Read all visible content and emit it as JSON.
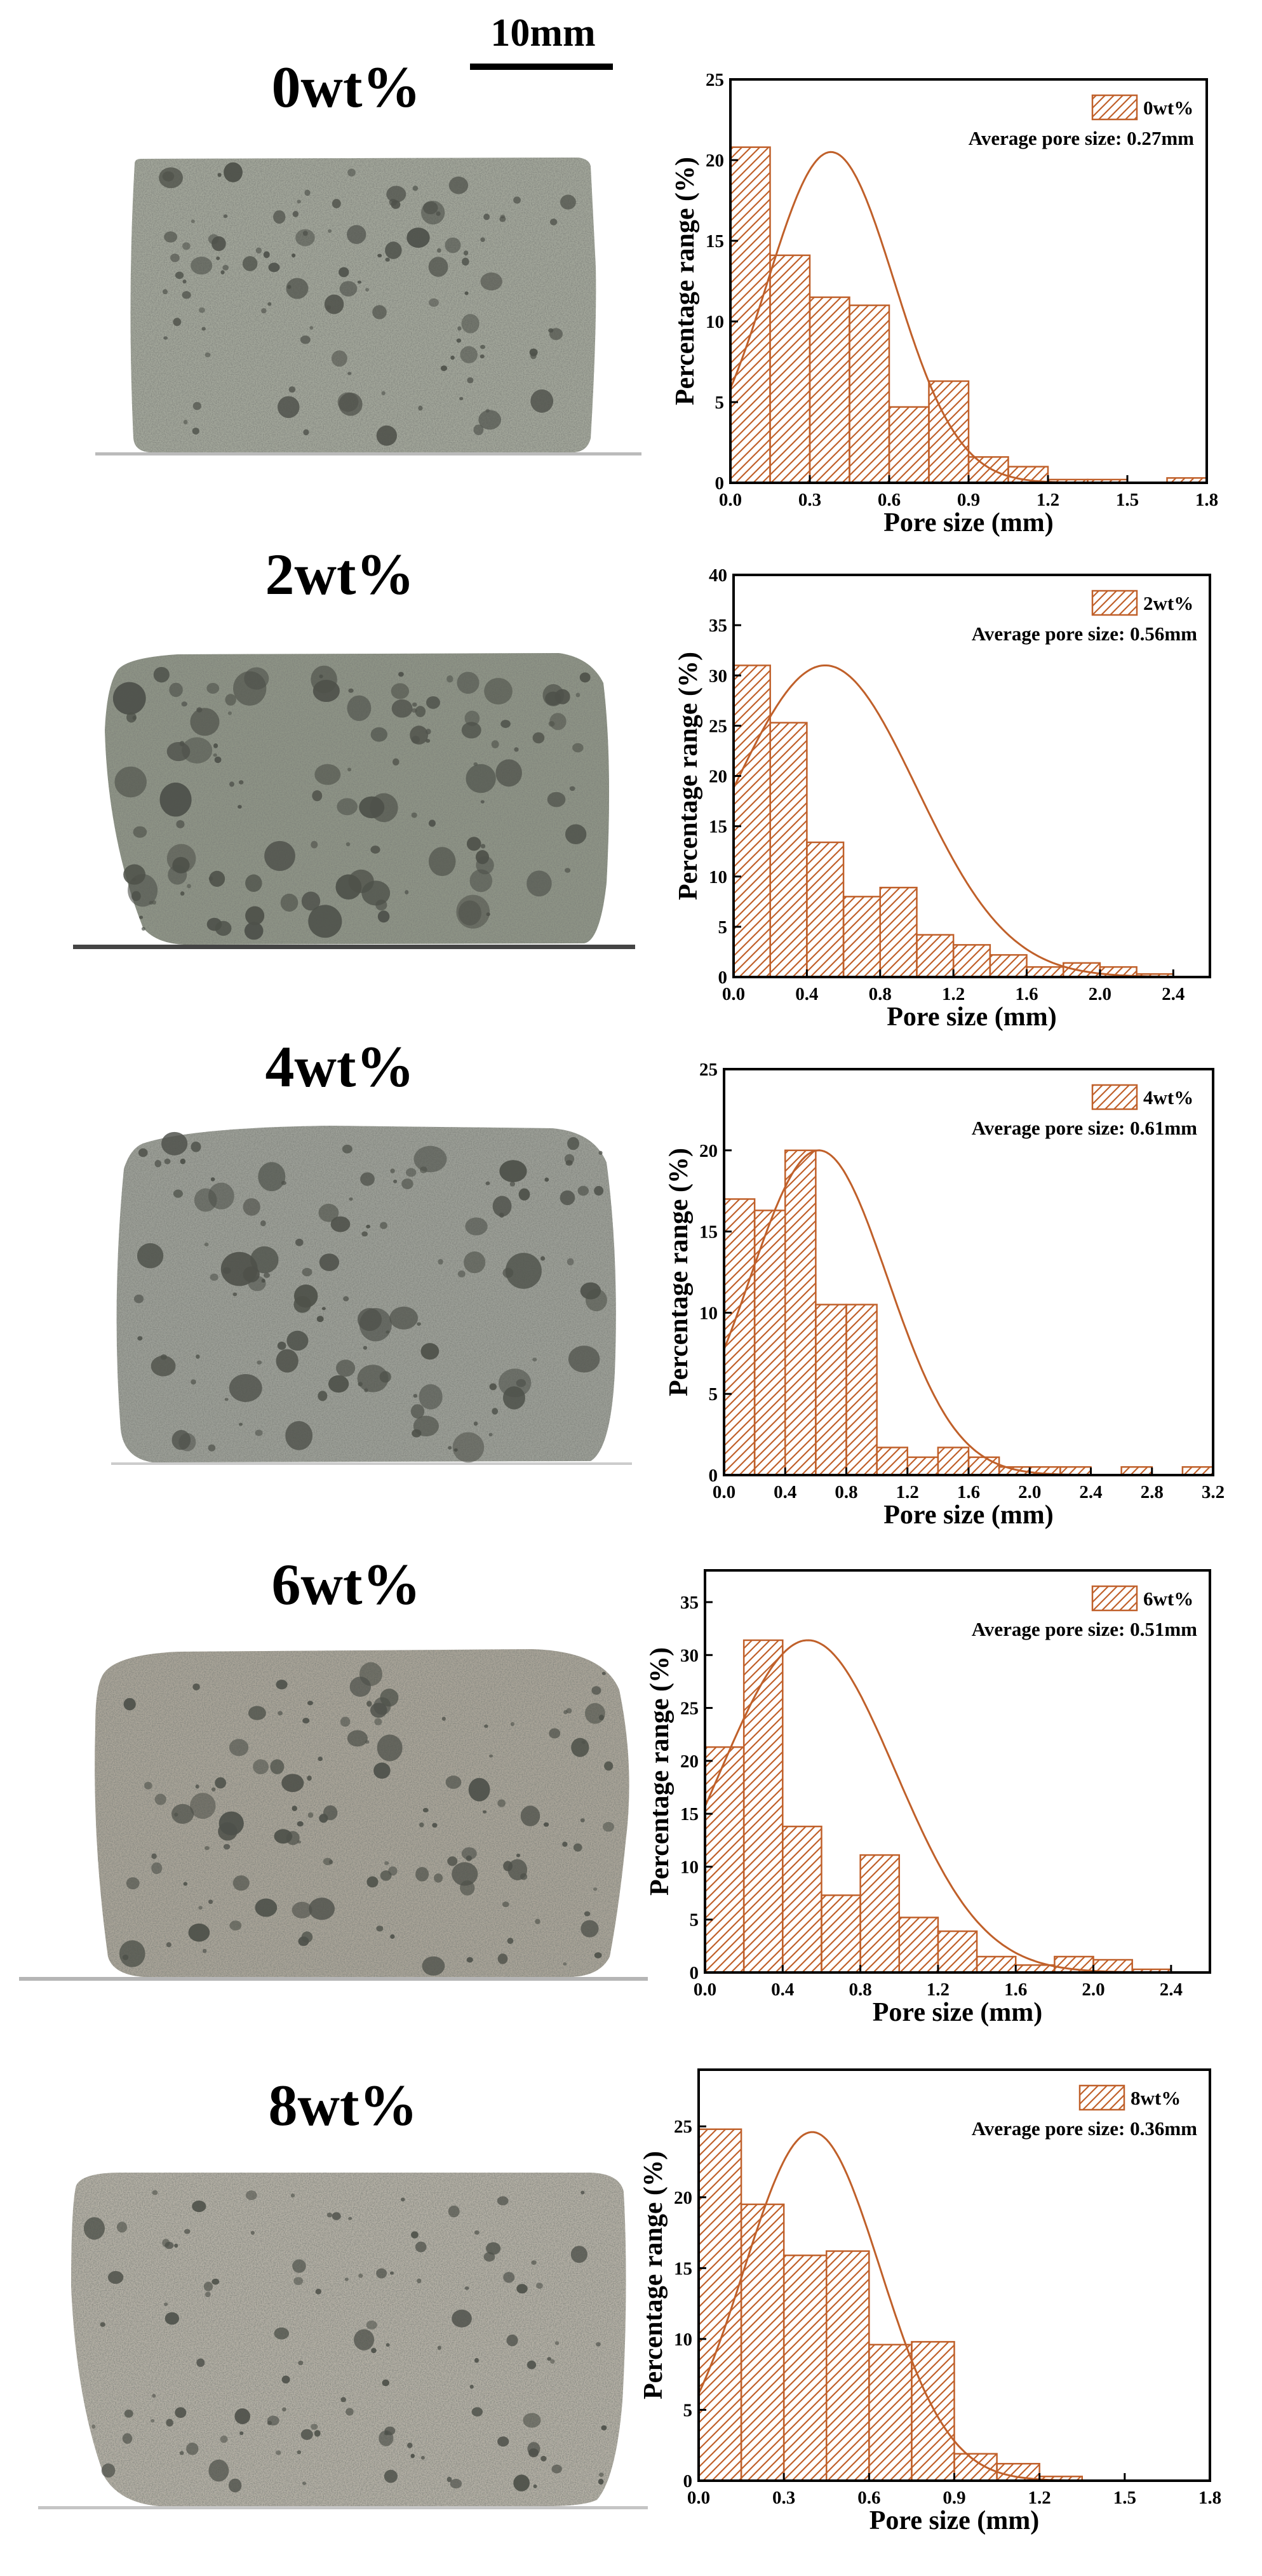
{
  "scale_bar": {
    "label": "10mm"
  },
  "colors": {
    "bar_stroke": "#c0602a",
    "fit_curve": "#c0602a",
    "axis": "#000000",
    "sample_light": "#a9aca0",
    "sample_dark": "#4e514a"
  },
  "samples": [
    {
      "label": "0wt%",
      "tone": "#a2a69a"
    },
    {
      "label": "2wt%",
      "tone": "#8e9486"
    },
    {
      "label": "4wt%",
      "tone": "#9c9f97"
    },
    {
      "label": "6wt%",
      "tone": "#aaa599"
    },
    {
      "label": "8wt%",
      "tone": "#b4b0a5"
    }
  ],
  "chart_data": [
    {
      "type": "bar",
      "title": "0wt%",
      "legend": "0wt%",
      "annotation": "Average pore size: 0.27mm",
      "xlabel": "Pore size (mm)",
      "ylabel": "Percentage range (%)",
      "xlim": [
        0,
        1.8
      ],
      "ylim": [
        0,
        25
      ],
      "xticks": [
        "0.0",
        "0.3",
        "0.6",
        "0.9",
        "1.2",
        "1.5",
        "1.8"
      ],
      "yticks": [
        "0",
        "5",
        "10",
        "15",
        "20",
        "25"
      ],
      "bin_width": 0.15,
      "bin_starts": [
        0,
        0.15,
        0.3,
        0.45,
        0.6,
        0.75,
        0.9,
        1.05,
        1.2,
        1.35,
        1.65
      ],
      "values": [
        20.8,
        14.1,
        11.5,
        11.0,
        4.7,
        6.3,
        1.6,
        1.0,
        0.2,
        0.2,
        0.3
      ],
      "fit": {
        "mean": 0.38,
        "sd": 0.24,
        "peak": 20.5
      }
    },
    {
      "type": "bar",
      "title": "2wt%",
      "legend": "2wt%",
      "annotation": "Average pore size: 0.56mm",
      "xlabel": "Pore size (mm)",
      "ylabel": "Percentage range (%)",
      "xlim": [
        0,
        2.6
      ],
      "ylim": [
        0,
        40
      ],
      "xticks": [
        "0.0",
        "0.4",
        "0.8",
        "1.2",
        "1.6",
        "2.0",
        "2.4"
      ],
      "yticks": [
        "0",
        "5",
        "10",
        "15",
        "20",
        "25",
        "30",
        "35",
        "40"
      ],
      "bin_width": 0.2,
      "bin_starts": [
        0,
        0.2,
        0.4,
        0.6,
        0.8,
        1.0,
        1.2,
        1.4,
        1.6,
        1.8,
        2.0,
        2.2
      ],
      "values": [
        31.0,
        25.3,
        13.4,
        8.0,
        8.9,
        4.2,
        3.2,
        2.2,
        1.0,
        1.4,
        1.0,
        0.3
      ],
      "fit": {
        "mean": 0.5,
        "sd": 0.5,
        "peak": 31.0
      }
    },
    {
      "type": "bar",
      "title": "4wt%",
      "legend": "4wt%",
      "annotation": "Average pore size: 0.61mm",
      "xlabel": "Pore size (mm)",
      "ylabel": "Percentage range (%)",
      "xlim": [
        0,
        3.2
      ],
      "ylim": [
        0,
        25
      ],
      "xticks": [
        "0.0",
        "0.4",
        "0.8",
        "1.2",
        "1.6",
        "2.0",
        "2.4",
        "2.8",
        "3.2"
      ],
      "yticks": [
        "0",
        "5",
        "10",
        "15",
        "20",
        "25"
      ],
      "bin_width": 0.2,
      "bin_starts": [
        0,
        0.2,
        0.4,
        0.6,
        0.8,
        1.0,
        1.2,
        1.4,
        1.6,
        1.8,
        2.0,
        2.2,
        2.6,
        3.0
      ],
      "values": [
        17.0,
        16.3,
        20.0,
        10.5,
        10.5,
        1.7,
        1.1,
        1.7,
        1.1,
        0.5,
        0.5,
        0.5,
        0.5,
        0.5
      ],
      "fit": {
        "mean": 0.62,
        "sd": 0.45,
        "peak": 20.0
      }
    },
    {
      "type": "bar",
      "title": "6wt%",
      "legend": "6wt%",
      "annotation": "Average pore size: 0.51mm",
      "xlabel": "Pore size (mm)",
      "ylabel": "Percentage range (%)",
      "xlim": [
        0,
        2.6
      ],
      "ylim": [
        0,
        38
      ],
      "xticks": [
        "0.0",
        "0.4",
        "0.8",
        "1.2",
        "1.6",
        "2.0",
        "2.4"
      ],
      "yticks": [
        "0",
        "5",
        "10",
        "15",
        "20",
        "25",
        "30",
        "35"
      ],
      "bin_width": 0.2,
      "bin_starts": [
        0,
        0.2,
        0.4,
        0.6,
        0.8,
        1.0,
        1.2,
        1.4,
        1.6,
        1.8,
        2.0,
        2.2
      ],
      "values": [
        21.3,
        31.4,
        13.8,
        7.3,
        11.1,
        5.2,
        3.9,
        1.5,
        0.7,
        1.5,
        1.2,
        0.3
      ],
      "fit": {
        "mean": 0.53,
        "sd": 0.45,
        "peak": 31.4
      }
    },
    {
      "type": "bar",
      "title": "8wt%",
      "legend": "8wt%",
      "annotation": "Average pore size: 0.36mm",
      "xlabel": "Pore size (mm)",
      "ylabel": "Percentage range (%)",
      "xlim": [
        0,
        1.8
      ],
      "ylim": [
        0,
        29
      ],
      "xticks": [
        "0.0",
        "0.3",
        "0.6",
        "0.9",
        "1.2",
        "1.5",
        "1.8"
      ],
      "yticks": [
        "0",
        "5",
        "10",
        "15",
        "20",
        "25"
      ],
      "bin_width": 0.15,
      "bin_starts": [
        0,
        0.15,
        0.3,
        0.45,
        0.6,
        0.75,
        0.9,
        1.05,
        1.2
      ],
      "values": [
        24.8,
        19.5,
        15.9,
        16.2,
        9.6,
        9.8,
        1.9,
        1.2,
        0.3
      ],
      "fit": {
        "mean": 0.4,
        "sd": 0.24,
        "peak": 24.6
      }
    }
  ]
}
